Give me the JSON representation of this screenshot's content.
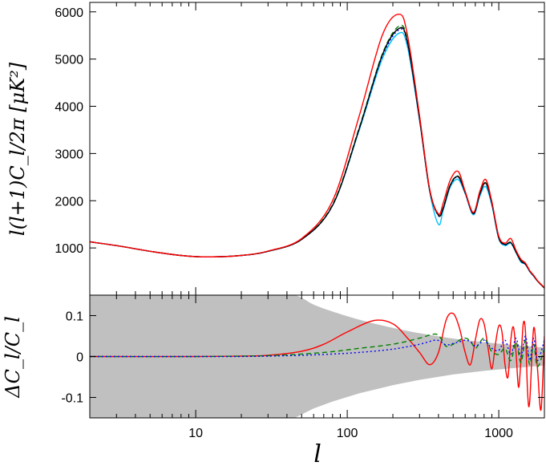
{
  "chart_data": [
    {
      "type": "line",
      "xlabel": "",
      "ylabel": "l(l+1)C_l/2π  [μK²]",
      "xscale": "log",
      "xlim": [
        2,
        2000
      ],
      "ylim": [
        0,
        6200
      ],
      "yticks": [
        1000,
        2000,
        3000,
        4000,
        5000,
        6000
      ],
      "grid": false,
      "legend": "none",
      "series": [
        {
          "color": "#00c0ff",
          "style": "solid",
          "x": [
            2,
            3,
            5,
            8,
            12,
            20,
            30,
            50,
            80,
            120,
            170,
            220,
            250,
            300,
            350,
            400,
            430,
            480,
            540,
            600,
            680,
            750,
            820,
            900,
            1000,
            1100,
            1200,
            1300,
            1400,
            1500,
            1600,
            1700,
            1800,
            2000
          ],
          "y": [
            1130,
            1050,
            930,
            840,
            810,
            840,
            930,
            1180,
            1900,
            3500,
            5000,
            5550,
            5250,
            3700,
            2200,
            1500,
            1800,
            2300,
            2450,
            2150,
            1700,
            2100,
            2300,
            1900,
            1200,
            1050,
            1100,
            900,
            700,
            650,
            500,
            400,
            300,
            150
          ]
        },
        {
          "color": "#008000",
          "style": "dashed",
          "x": [
            2,
            3,
            5,
            8,
            12,
            20,
            30,
            50,
            80,
            120,
            170,
            220,
            250,
            300,
            350,
            400,
            430,
            480,
            540,
            600,
            680,
            750,
            820,
            900,
            1000,
            1100,
            1200,
            1300,
            1400,
            1500,
            1600,
            1700,
            1800,
            2000
          ],
          "y": [
            1130,
            1050,
            930,
            840,
            810,
            840,
            930,
            1185,
            1920,
            3550,
            5100,
            5700,
            5380,
            3750,
            2230,
            1700,
            1850,
            2350,
            2520,
            2180,
            1730,
            2150,
            2380,
            1950,
            1220,
            1080,
            1120,
            920,
            730,
            660,
            510,
            410,
            300,
            150
          ]
        },
        {
          "color": "#0000ff",
          "style": "dotted",
          "x": [
            2,
            3,
            5,
            8,
            12,
            20,
            30,
            50,
            80,
            120,
            170,
            220,
            250,
            300,
            350,
            400,
            430,
            480,
            540,
            600,
            680,
            750,
            820,
            900,
            1000,
            1100,
            1200,
            1300,
            1400,
            1500,
            1600,
            1700,
            1800,
            2000
          ],
          "y": [
            1130,
            1050,
            930,
            840,
            810,
            840,
            930,
            1180,
            1900,
            3520,
            5050,
            5620,
            5330,
            3720,
            2220,
            1680,
            1830,
            2330,
            2500,
            2170,
            1720,
            2140,
            2370,
            1940,
            1210,
            1070,
            1110,
            910,
            720,
            650,
            505,
            405,
            300,
            150
          ]
        },
        {
          "color": "#000000",
          "style": "solid",
          "x": [
            2,
            3,
            5,
            8,
            12,
            20,
            30,
            50,
            80,
            120,
            170,
            220,
            250,
            300,
            350,
            400,
            430,
            480,
            540,
            600,
            680,
            750,
            820,
            900,
            1000,
            1100,
            1200,
            1300,
            1400,
            1500,
            1600,
            1700,
            1800,
            2000
          ],
          "y": [
            1130,
            1050,
            930,
            840,
            810,
            840,
            930,
            1180,
            1900,
            3530,
            5080,
            5650,
            5350,
            3730,
            2220,
            1690,
            1840,
            2340,
            2510,
            2175,
            1725,
            2145,
            2375,
            1945,
            1215,
            1075,
            1115,
            915,
            725,
            655,
            508,
            408,
            300,
            150
          ]
        },
        {
          "color": "#ff0000",
          "style": "solid",
          "x": [
            2,
            3,
            5,
            8,
            12,
            20,
            30,
            50,
            80,
            120,
            170,
            220,
            250,
            300,
            350,
            400,
            430,
            480,
            540,
            600,
            680,
            750,
            820,
            900,
            1000,
            1100,
            1200,
            1300,
            1400,
            1500,
            1600,
            1700,
            1800,
            2000
          ],
          "y": [
            1130,
            1050,
            930,
            840,
            810,
            840,
            935,
            1200,
            2000,
            3800,
            5500,
            5950,
            5500,
            3800,
            2250,
            1720,
            1950,
            2450,
            2620,
            2200,
            1750,
            2200,
            2450,
            1980,
            1250,
            1100,
            1200,
            950,
            760,
            680,
            520,
            420,
            310,
            160
          ]
        }
      ]
    },
    {
      "type": "line",
      "xlabel": "l",
      "ylabel": "ΔC_l/C_l",
      "xscale": "log",
      "xlim": [
        2,
        2000
      ],
      "ylim": [
        -0.15,
        0.15
      ],
      "xticks": [
        10,
        100,
        1000
      ],
      "xticklabels": [
        "10",
        "100",
        "1000"
      ],
      "yticks": [
        -0.1,
        0,
        0.1
      ],
      "yticklabels": [
        "-0.1",
        "0",
        "0.1"
      ],
      "grid": false,
      "legend": "none",
      "cosmic_variance_band": {
        "color": "#c0c0c0",
        "x": [
          2,
          10,
          30,
          45,
          60,
          80,
          120,
          200,
          300,
          500,
          800,
          1200,
          2000
        ],
        "upper": [
          0.15,
          0.15,
          0.15,
          0.15,
          0.127,
          0.11,
          0.09,
          0.07,
          0.057,
          0.044,
          0.035,
          0.029,
          0.022
        ]
      },
      "series": [
        {
          "color": "#ff0000",
          "style": "solid",
          "x": [
            2,
            10,
            20,
            30,
            50,
            70,
            100,
            150,
            200,
            250,
            300,
            350,
            400,
            450,
            500,
            550,
            600,
            650,
            700,
            750,
            800,
            850,
            900,
            950,
            1000,
            1050,
            1100,
            1150,
            1200,
            1250,
            1300,
            1350,
            1400,
            1450,
            1500,
            1550,
            1600,
            1700,
            1800,
            1900,
            2000
          ],
          "y": [
            0,
            0,
            0.001,
            0.003,
            0.013,
            0.03,
            0.06,
            0.088,
            0.08,
            0.045,
            0.01,
            -0.02,
            0.01,
            0.09,
            0.105,
            0.07,
            0.01,
            -0.02,
            0.04,
            0.09,
            0.08,
            0.02,
            -0.03,
            0.03,
            0.075,
            0.06,
            -0.02,
            -0.05,
            0.04,
            0.072,
            0.01,
            -0.075,
            -0.01,
            0.08,
            0.06,
            -0.09,
            -0.11,
            0.07,
            -0.03,
            -0.13,
            0.05
          ]
        },
        {
          "color": "#008000",
          "style": "dashed",
          "x": [
            2,
            10,
            20,
            30,
            50,
            80,
            120,
            200,
            300,
            380,
            420,
            450,
            500,
            550,
            600,
            650,
            700,
            750,
            800,
            850,
            900,
            1000,
            1100,
            1200,
            1300,
            1400,
            1500,
            1600,
            1700,
            1800,
            2000
          ],
          "y": [
            0,
            0,
            0.001,
            0.002,
            0.006,
            0.012,
            0.02,
            0.03,
            0.045,
            0.055,
            0.042,
            0.025,
            0.03,
            0.04,
            0.045,
            0.038,
            0.02,
            0.035,
            0.045,
            0.03,
            0.012,
            0.005,
            0.02,
            -0.01,
            0.035,
            -0.015,
            0.04,
            -0.02,
            0.03,
            -0.025,
            0.02
          ]
        },
        {
          "color": "#0000ff",
          "style": "dotted",
          "x": [
            2,
            10,
            20,
            30,
            50,
            80,
            120,
            200,
            300,
            380,
            420,
            450,
            500,
            550,
            600,
            650,
            700,
            750,
            800,
            850,
            900,
            1000,
            1100,
            1200,
            1300,
            1400,
            1500,
            1600,
            1700,
            1800,
            2000
          ],
          "y": [
            0,
            0,
            0,
            0.001,
            0.003,
            0.006,
            0.01,
            0.018,
            0.03,
            0.04,
            0.035,
            0.028,
            0.032,
            0.036,
            0.04,
            0.036,
            0.025,
            0.032,
            0.04,
            0.03,
            0.02,
            0.015,
            0.04,
            0.005,
            0.045,
            0.0,
            0.05,
            -0.01,
            0.045,
            -0.01,
            0.04
          ]
        }
      ]
    }
  ]
}
